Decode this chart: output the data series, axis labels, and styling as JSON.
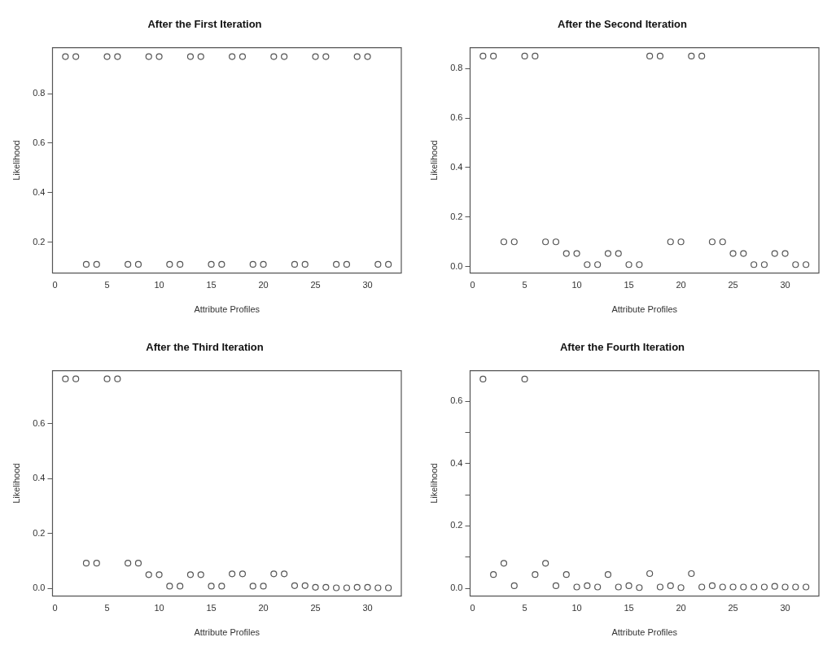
{
  "chart_data": [
    {
      "type": "scatter",
      "title": "After the First Iteration",
      "xlabel": "Attribute Profiles",
      "ylabel": "Likelihood",
      "marker": "circle",
      "grid": false,
      "x": [
        1,
        2,
        3,
        4,
        5,
        6,
        7,
        8,
        9,
        10,
        11,
        12,
        13,
        14,
        15,
        16,
        17,
        18,
        19,
        20,
        21,
        22,
        23,
        24,
        25,
        26,
        27,
        28,
        29,
        30,
        31,
        32
      ],
      "series": [
        {
          "color": "#555555",
          "values": [
            0.95,
            0.95,
            0.11,
            0.11,
            0.95,
            0.95,
            0.11,
            0.11,
            0.95,
            0.95,
            0.11,
            0.11,
            0.95,
            0.95,
            0.11,
            0.11,
            0.95,
            0.95,
            0.11,
            0.11,
            0.95,
            0.95,
            0.11,
            0.11,
            0.95,
            0.95,
            0.11,
            0.11,
            0.95,
            0.95,
            0.11,
            0.11
          ]
        }
      ],
      "xlim": [
        -0.24,
        33.24
      ],
      "xticks": [
        0,
        5,
        10,
        15,
        20,
        25,
        30
      ],
      "ylim": [
        0.075,
        0.986
      ],
      "yticks": [
        0.2,
        0.4,
        0.6,
        0.8
      ]
    },
    {
      "type": "scatter",
      "title": "After the Second Iteration",
      "xlabel": "Attribute Profiles",
      "ylabel": "Likelihood",
      "marker": "circle",
      "grid": false,
      "x": [
        1,
        2,
        3,
        4,
        5,
        6,
        7,
        8,
        9,
        10,
        11,
        12,
        13,
        14,
        15,
        16,
        17,
        18,
        19,
        20,
        21,
        22,
        23,
        24,
        25,
        26,
        27,
        28,
        29,
        30,
        31,
        32
      ],
      "series": [
        {
          "color": "#555555",
          "values": [
            0.85,
            0.85,
            0.1,
            0.1,
            0.85,
            0.85,
            0.1,
            0.1,
            0.053,
            0.053,
            0.008,
            0.008,
            0.053,
            0.053,
            0.008,
            0.008,
            0.85,
            0.85,
            0.1,
            0.1,
            0.85,
            0.85,
            0.1,
            0.1,
            0.053,
            0.053,
            0.008,
            0.008,
            0.053,
            0.053,
            0.008,
            0.008
          ]
        }
      ],
      "xlim": [
        -0.24,
        33.24
      ],
      "xticks": [
        0,
        5,
        10,
        15,
        20,
        25,
        30
      ],
      "ylim": [
        -0.026,
        0.884
      ],
      "yticks": [
        {
          "value": 0,
          "label": "0.0"
        },
        0.2,
        0.4,
        0.6,
        0.8
      ]
    },
    {
      "type": "scatter",
      "title": "After the Third Iteration",
      "xlabel": "Attribute Profiles",
      "ylabel": "Likelihood",
      "marker": "circle",
      "grid": false,
      "x": [
        1,
        2,
        3,
        4,
        5,
        6,
        7,
        8,
        9,
        10,
        11,
        12,
        13,
        14,
        15,
        16,
        17,
        18,
        19,
        20,
        21,
        22,
        23,
        24,
        25,
        26,
        27,
        28,
        29,
        30,
        31,
        32
      ],
      "series": [
        {
          "color": "#555555",
          "values": [
            0.764,
            0.764,
            0.092,
            0.092,
            0.764,
            0.764,
            0.092,
            0.092,
            0.05,
            0.05,
            0.008,
            0.008,
            0.05,
            0.05,
            0.008,
            0.008,
            0.053,
            0.053,
            0.008,
            0.008,
            0.053,
            0.053,
            0.01,
            0.01,
            0.004,
            0.004,
            0.002,
            0.002,
            0.004,
            0.004,
            0.002,
            0.002
          ]
        }
      ],
      "xlim": [
        -0.24,
        33.24
      ],
      "xticks": [
        0,
        5,
        10,
        15,
        20,
        25,
        30
      ],
      "ylim": [
        -0.028,
        0.794
      ],
      "yticks": [
        {
          "value": 0,
          "label": "0.0"
        },
        0.2,
        0.4,
        0.6
      ]
    },
    {
      "type": "scatter",
      "title": "After the Fourth Iteration",
      "xlabel": "Attribute Profiles",
      "ylabel": "Likelihood",
      "marker": "circle",
      "grid": false,
      "x": [
        1,
        2,
        3,
        4,
        5,
        6,
        7,
        8,
        9,
        10,
        11,
        12,
        13,
        14,
        15,
        16,
        17,
        18,
        19,
        20,
        21,
        22,
        23,
        24,
        25,
        26,
        27,
        28,
        29,
        30,
        31,
        32
      ],
      "series": [
        {
          "color": "#555555",
          "values": [
            0.671,
            0.044,
            0.08,
            0.008,
            0.671,
            0.044,
            0.08,
            0.008,
            0.044,
            0.004,
            0.008,
            0.004,
            0.044,
            0.004,
            0.008,
            0.002,
            0.047,
            0.004,
            0.008,
            0.002,
            0.047,
            0.004,
            0.008,
            0.004,
            0.004,
            0.004,
            0.004,
            0.004,
            0.006,
            0.004,
            0.004,
            0.004
          ]
        }
      ],
      "xlim": [
        -0.24,
        33.24
      ],
      "xticks": [
        0,
        5,
        10,
        15,
        20,
        25,
        30
      ],
      "ylim": [
        -0.025,
        0.698
      ],
      "yticks": [
        {
          "value": 0,
          "label": "0.0"
        },
        {
          "value": 0.1,
          "label": null
        },
        0.2,
        {
          "value": 0.3,
          "label": null
        },
        0.4,
        {
          "value": 0.5,
          "label": null
        },
        0.6
      ]
    }
  ]
}
